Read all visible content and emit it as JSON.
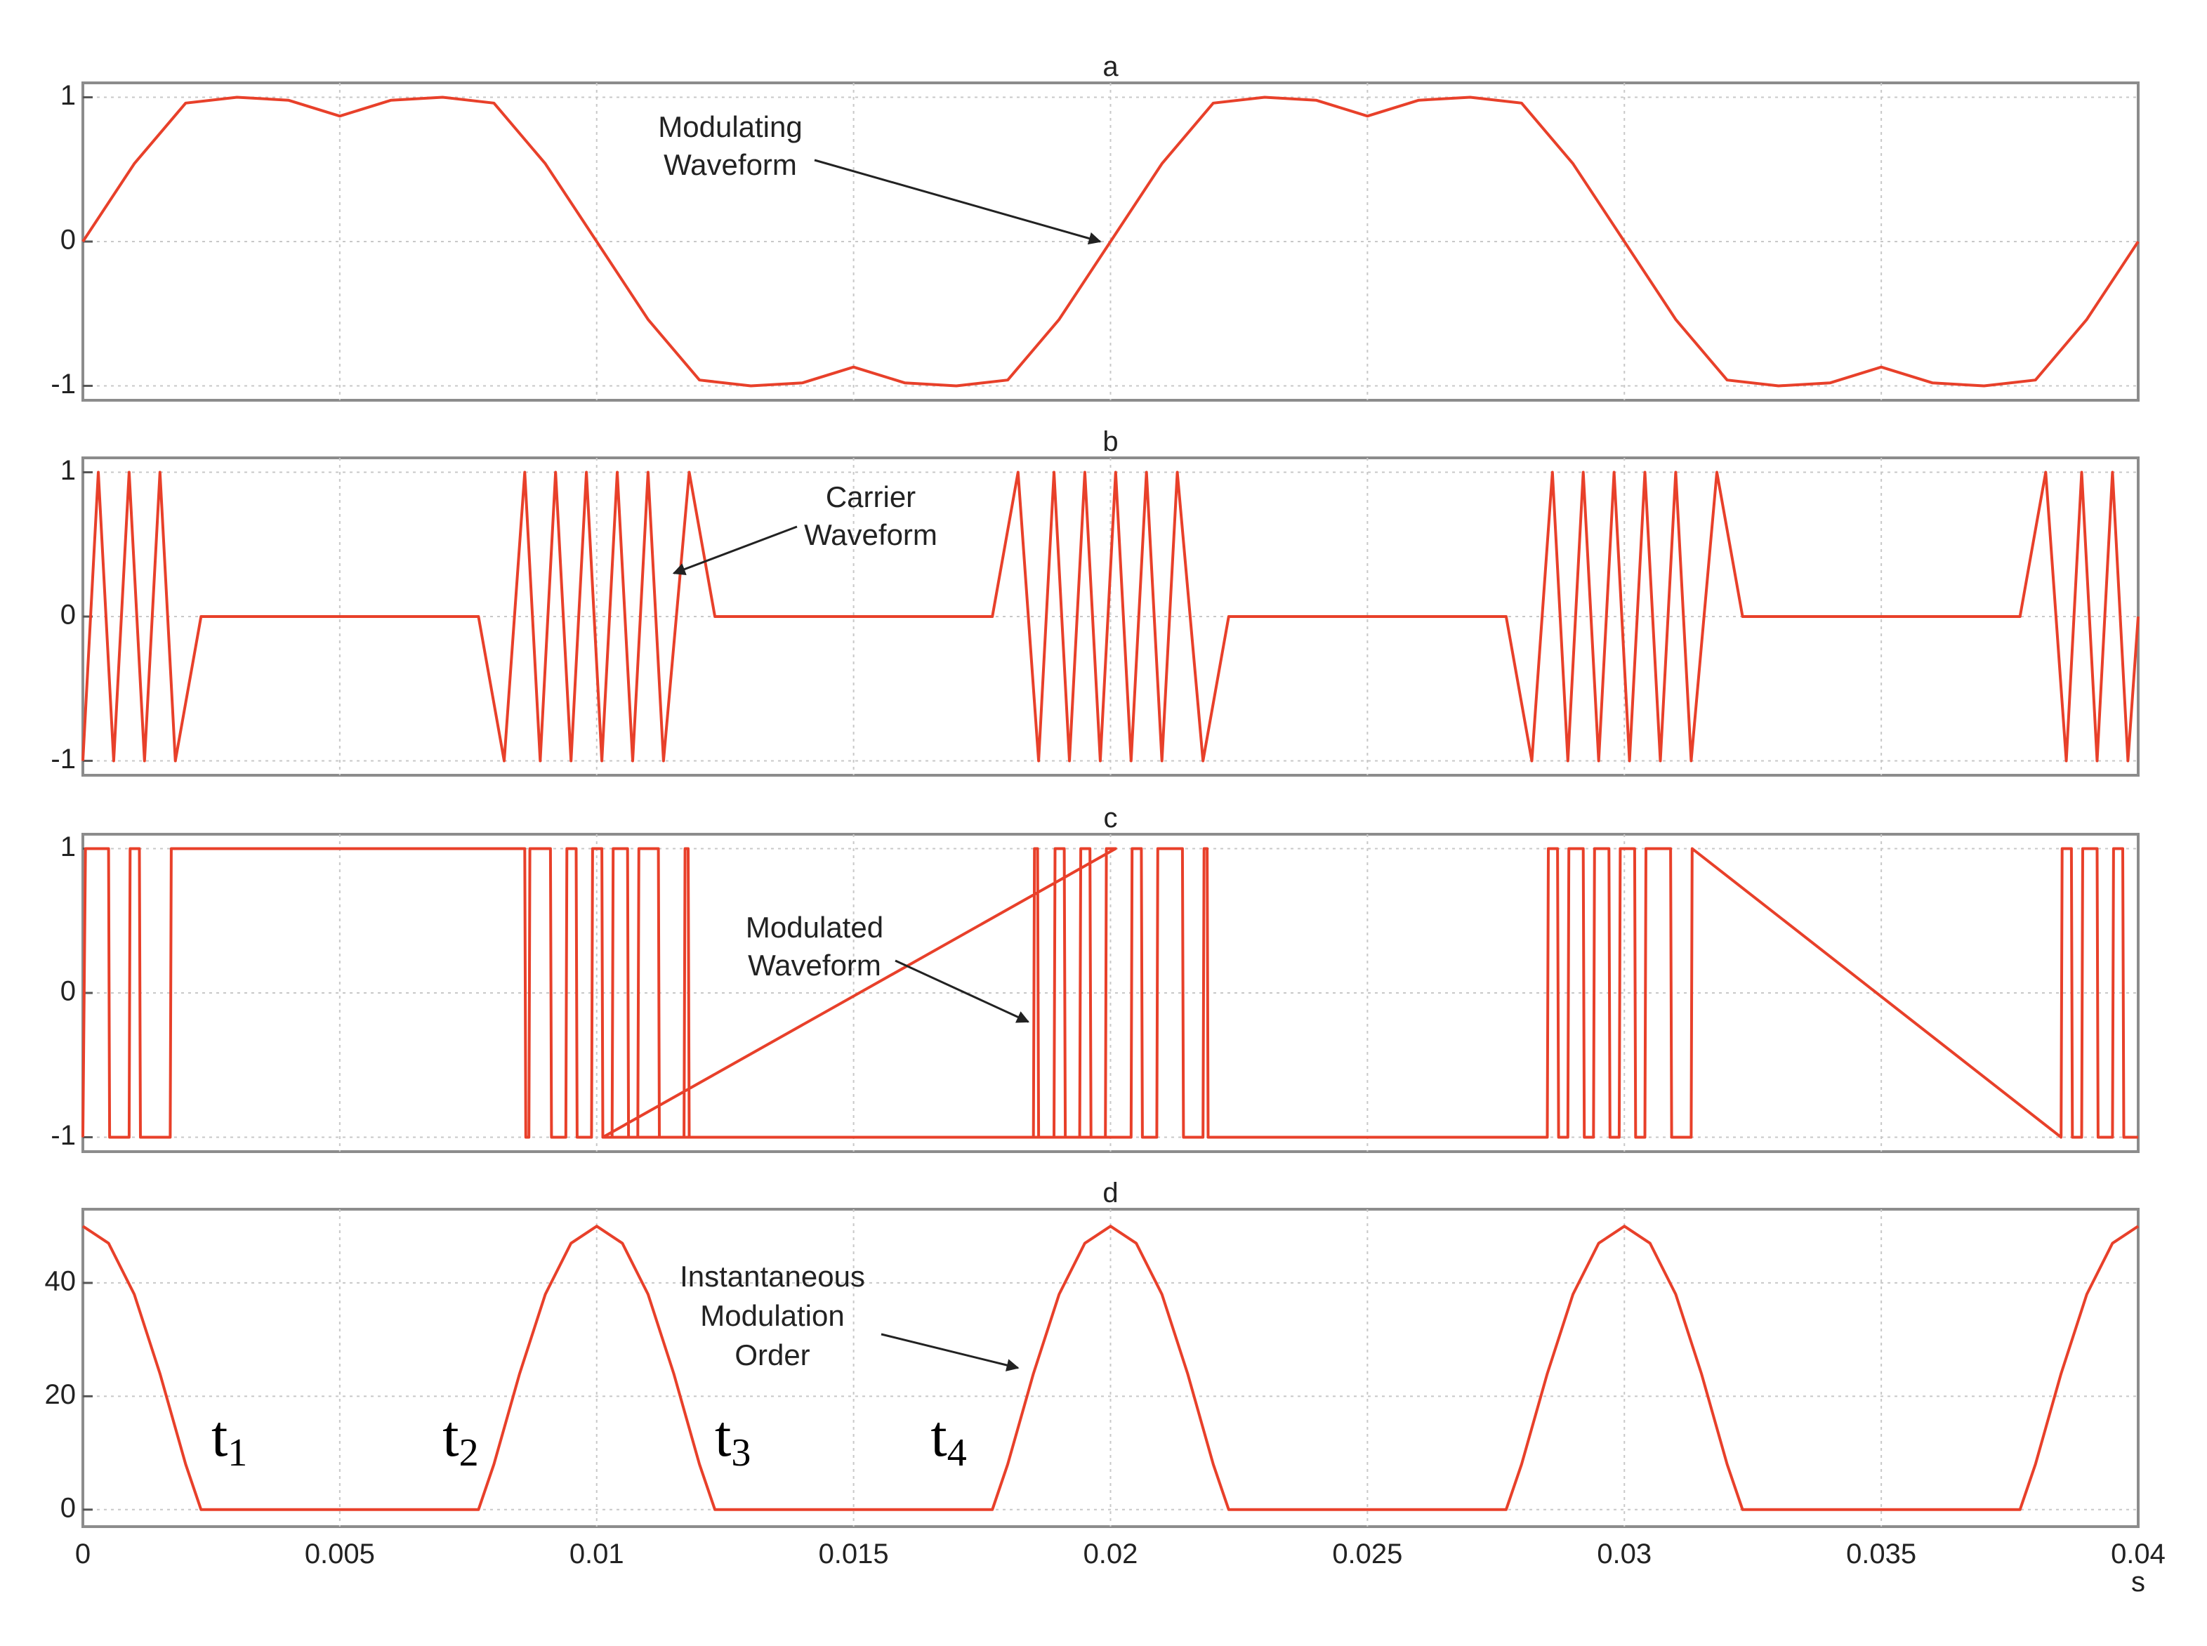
{
  "chart_data": [
    {
      "type": "line",
      "title": "a",
      "xlim": [
        0,
        0.04
      ],
      "ylim": [
        -1.1,
        1.1
      ],
      "yticks": [
        "1",
        "0",
        "-1"
      ],
      "grid": true,
      "color": "#e8402a",
      "annotation": [
        "Modulating",
        "Waveform"
      ],
      "annotation_target": {
        "x": 0.0198,
        "y": 0
      },
      "series": [
        {
          "x": [
            0,
            0.001,
            0.002,
            0.003,
            0.004,
            0.005,
            0.006,
            0.007,
            0.008,
            0.009,
            0.01,
            0.011,
            0.012,
            0.013,
            0.014,
            0.015,
            0.016,
            0.017,
            0.018,
            0.019,
            0.02,
            0.021,
            0.022,
            0.023,
            0.024,
            0.025,
            0.026,
            0.027,
            0.028,
            0.029,
            0.03,
            0.031,
            0.032,
            0.033,
            0.034,
            0.035,
            0.036,
            0.037,
            0.038,
            0.039,
            0.04
          ],
          "values": [
            0,
            0.54,
            0.96,
            1.0,
            0.98,
            0.87,
            0.98,
            1.0,
            0.96,
            0.54,
            0,
            -0.54,
            -0.96,
            -1.0,
            -0.98,
            -0.87,
            -0.98,
            -1.0,
            -0.96,
            -0.54,
            0,
            0.54,
            0.96,
            1.0,
            0.98,
            0.87,
            0.98,
            1.0,
            0.96,
            0.54,
            0,
            -0.54,
            -0.96,
            -1.0,
            -0.98,
            -0.87,
            -0.98,
            -1.0,
            -0.96,
            -0.54,
            0
          ]
        }
      ]
    },
    {
      "type": "line",
      "title": "b",
      "xlim": [
        0,
        0.04
      ],
      "ylim": [
        -1.1,
        1.1
      ],
      "yticks": [
        "1",
        "0",
        "-1"
      ],
      "grid": true,
      "color": "#e8402a",
      "annotation": [
        "Carrier",
        "Waveform"
      ],
      "annotation_target": {
        "x": 0.0115,
        "y": 0.3
      },
      "series": [
        {
          "x": [
            0,
            0.0003,
            0.0006,
            0.0009,
            0.0012,
            0.0015,
            0.0018,
            0.0023,
            0.0077,
            0.0082,
            0.0086,
            0.0089,
            0.0092,
            0.0095,
            0.0098,
            0.0101,
            0.0104,
            0.0107,
            0.011,
            0.0113,
            0.0118,
            0.0123,
            0.0177,
            0.0182,
            0.0186,
            0.0189,
            0.0192,
            0.0195,
            0.0198,
            0.0201,
            0.0204,
            0.0207,
            0.021,
            0.0213,
            0.0218,
            0.0223,
            0.0277,
            0.0282,
            0.0286,
            0.0289,
            0.0292,
            0.0295,
            0.0298,
            0.0301,
            0.0304,
            0.0307,
            0.031,
            0.0313,
            0.0318,
            0.0323,
            0.0377,
            0.0382,
            0.0386,
            0.0389,
            0.0392,
            0.0395,
            0.0398,
            0.04
          ],
          "values": [
            -1,
            1,
            -1,
            1,
            -1,
            1,
            -1,
            0,
            0,
            -1,
            1,
            -1,
            1,
            -1,
            1,
            -1,
            1,
            -1,
            1,
            -1,
            1,
            0,
            0,
            1,
            -1,
            1,
            -1,
            1,
            -1,
            1,
            -1,
            1,
            -1,
            1,
            -1,
            0,
            0,
            -1,
            1,
            -1,
            1,
            -1,
            1,
            -1,
            1,
            -1,
            1,
            -1,
            1,
            0,
            0,
            1,
            -1,
            1,
            -1,
            1,
            -1,
            0
          ]
        }
      ]
    },
    {
      "type": "line",
      "title": "c",
      "xlim": [
        0,
        0.04
      ],
      "ylim": [
        -1.1,
        1.1
      ],
      "yticks": [
        "1",
        "0",
        "-1"
      ],
      "grid": true,
      "color": "#e8402a",
      "annotation": [
        "Modulated",
        "Waveform"
      ],
      "annotation_target": {
        "x": 0.0184,
        "y": -0.2
      },
      "series": [
        {
          "x": [
            0,
            5e-05,
            0.00015,
            0.0005,
            0.00052,
            0.0009,
            0.00092,
            0.0011,
            0.00112,
            0.0017,
            0.00172,
            0.00178,
            0.0018,
            0.0086,
            0.00862,
            0.00868,
            0.0087,
            0.0091,
            0.00912,
            0.0094,
            0.00942,
            0.0096,
            0.00962,
            0.0099,
            0.00992,
            0.0101,
            0.01012,
            0.0103,
            0.01032,
            0.0106,
            0.01062,
            0.0108,
            0.01082,
            0.0112,
            0.01122,
            0.0117,
            0.01172,
            0.01178,
            0.0118,
            0.0185,
            0.01852,
            0.01858,
            0.0186,
            0.0189,
            0.01892,
            0.0191,
            0.01912,
            0.0194,
            0.01942,
            0.0196,
            0.01962,
            0.0199,
            0.01992,
            0.0201,
            0.01012,
            0.0204,
            0.02042,
            0.0206,
            0.02062,
            0.0209,
            0.02092,
            0.0214,
            0.02142,
            0.0218,
            0.02182,
            0.02188,
            0.0219,
            0.0285,
            0.02852,
            0.0287,
            0.02872,
            0.0289,
            0.02892,
            0.0292,
            0.02922,
            0.0294,
            0.02942,
            0.0297,
            0.02972,
            0.0299,
            0.02992,
            0.0302,
            0.03022,
            0.0304,
            0.03042,
            0.0309,
            0.03092,
            0.0313,
            0.03132,
            0.0385,
            0.03852,
            0.0387,
            0.03872,
            0.0389,
            0.03892,
            0.0392,
            0.03922,
            0.0395,
            0.03952,
            0.0397,
            0.03972,
            0.04
          ],
          "values": [
            -1,
            1,
            1,
            1,
            -1,
            -1,
            1,
            1,
            -1,
            -1,
            1,
            1,
            1,
            1,
            -1,
            -1,
            1,
            1,
            -1,
            -1,
            1,
            1,
            -1,
            -1,
            1,
            1,
            -1,
            -1,
            1,
            1,
            -1,
            -1,
            1,
            1,
            -1,
            -1,
            1,
            1,
            -1,
            -1,
            1,
            1,
            -1,
            -1,
            1,
            1,
            -1,
            -1,
            1,
            1,
            -1,
            -1,
            1,
            1,
            -1,
            -1,
            1,
            1,
            -1,
            -1,
            1,
            1,
            -1,
            -1,
            1,
            1,
            -1,
            -1,
            1,
            1,
            -1,
            -1,
            1,
            1,
            -1,
            -1,
            1,
            1,
            -1,
            -1,
            1,
            1,
            -1,
            -1,
            1,
            1,
            -1,
            -1,
            1,
            -1,
            1,
            1,
            -1,
            -1,
            1,
            1,
            -1,
            -1,
            1,
            1,
            -1,
            -1
          ]
        }
      ]
    },
    {
      "type": "line",
      "title": "d",
      "xlim": [
        0,
        0.04
      ],
      "ylim": [
        -3,
        53
      ],
      "yticks": [
        "40",
        "20",
        "0"
      ],
      "ytick_values": [
        40,
        20,
        0
      ],
      "xticks": [
        "0",
        "0.005",
        "0.01",
        "0.015",
        "0.02",
        "0.025",
        "0.03",
        "0.035",
        "0.04"
      ],
      "xunit": "s",
      "grid": true,
      "color": "#e8402a",
      "annotation": [
        "Instantaneous",
        "Modulation",
        "Order"
      ],
      "annotation_target": {
        "x": 0.0182,
        "y": 25
      },
      "point_labels": [
        {
          "base": "t",
          "sub": "1",
          "x": 0.0025,
          "y": 12
        },
        {
          "base": "t",
          "sub": "2",
          "x": 0.007,
          "y": 12
        },
        {
          "base": "t",
          "sub": "3",
          "x": 0.0123,
          "y": 12
        },
        {
          "base": "t",
          "sub": "4",
          "x": 0.0165,
          "y": 12
        }
      ],
      "series": [
        {
          "x": [
            0,
            0.0005,
            0.001,
            0.0015,
            0.002,
            0.0023,
            0.0077,
            0.008,
            0.0085,
            0.009,
            0.0095,
            0.01,
            0.0105,
            0.011,
            0.0115,
            0.012,
            0.0123,
            0.0177,
            0.018,
            0.0185,
            0.019,
            0.0195,
            0.02,
            0.0205,
            0.021,
            0.0215,
            0.022,
            0.0223,
            0.0277,
            0.028,
            0.0285,
            0.029,
            0.0295,
            0.03,
            0.0305,
            0.031,
            0.0315,
            0.032,
            0.0323,
            0.0377,
            0.038,
            0.0385,
            0.039,
            0.0395,
            0.04
          ],
          "values": [
            50,
            47,
            38,
            24,
            8,
            0,
            0,
            8,
            24,
            38,
            47,
            50,
            47,
            38,
            24,
            8,
            0,
            0,
            8,
            24,
            38,
            47,
            50,
            47,
            38,
            24,
            8,
            0,
            0,
            8,
            24,
            38,
            47,
            50,
            47,
            38,
            24,
            8,
            0,
            0,
            8,
            24,
            38,
            47,
            50
          ]
        }
      ]
    }
  ]
}
